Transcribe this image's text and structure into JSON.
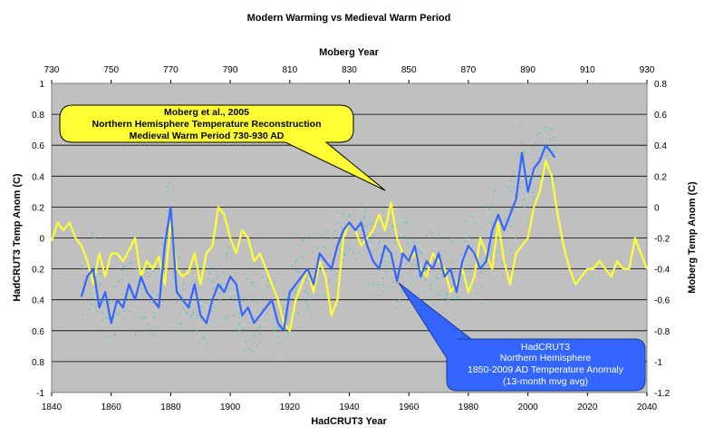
{
  "chart_data": {
    "type": "line",
    "title": "Modern Warming vs Medieval Warm Period",
    "x_bottom_label": "HadCRUT3 Year",
    "x_top_label": "Moberg Year",
    "y_left_label": "HadCRUT3 Temp Anom (C)",
    "y_right_label": "Moberg Temp Anom (C)",
    "x_bottom_ticks": [
      "1840",
      "1860",
      "1880",
      "1900",
      "1920",
      "1940",
      "1960",
      "1980",
      "2000",
      "2020",
      "2040"
    ],
    "x_top_ticks": [
      "730",
      "750",
      "770",
      "790",
      "810",
      "830",
      "850",
      "870",
      "890",
      "910",
      "930"
    ],
    "y_left_ticks": [
      "1",
      "0.8",
      "0.6",
      "0.4",
      "0.2",
      "0",
      "0.2",
      "0.4",
      "0.6",
      "0.8",
      "-1"
    ],
    "y_right_ticks": [
      "0.8",
      "0.6",
      "0.4",
      "0.2",
      "0",
      "-0.2",
      "-0.4",
      "-0.6",
      "-0.8",
      "-1",
      "-1.2"
    ],
    "xlim_bottom": [
      1840,
      2040
    ],
    "xlim_top": [
      730,
      930
    ],
    "ylim_left": [
      -1,
      1
    ],
    "ylim_right": [
      -1.2,
      0.8
    ],
    "grid": true,
    "background": "#c0c0c0",
    "colors": {
      "moberg": "#ffff33",
      "hadcrut": "#3366ff",
      "scatter": "#33cccc"
    },
    "callouts": {
      "moberg": [
        "Moberg et al., 2005",
        "Northern Hemisphere Temperature Reconstruction",
        "Medieval Warm Period 730-930 AD"
      ],
      "hadcrut": [
        "HadCRUT3",
        "Northern Hemisphere",
        "1850-2009 AD Temperature Anomaly",
        "(13-month mvg avg)"
      ]
    },
    "series": [
      {
        "axis": "top-right",
        "x": [
          730,
          732,
          734,
          736,
          738,
          740,
          742,
          744,
          746,
          748,
          750,
          752,
          754,
          756,
          758,
          760,
          762,
          764,
          766,
          768,
          770,
          772,
          774,
          776,
          778,
          780,
          782,
          784,
          786,
          788,
          790,
          792,
          794,
          796,
          798,
          800,
          802,
          804,
          806,
          808,
          810,
          812,
          814,
          816,
          818,
          820,
          822,
          824,
          826,
          828,
          830,
          832,
          834,
          836,
          838,
          840,
          842,
          844,
          846,
          848,
          850,
          852,
          854,
          856,
          858,
          860,
          862,
          864,
          866,
          868,
          870,
          872,
          874,
          876,
          878,
          880,
          882,
          884,
          886,
          888,
          890,
          892,
          894,
          896,
          898,
          900,
          902,
          904,
          906,
          908,
          910,
          912,
          914,
          916,
          918,
          920,
          922,
          924,
          926,
          928,
          930
        ],
        "values": [
          -0.22,
          -0.1,
          -0.15,
          -0.1,
          -0.2,
          -0.25,
          -0.35,
          -0.5,
          -0.3,
          -0.45,
          -0.3,
          -0.3,
          -0.35,
          -0.28,
          -0.2,
          -0.45,
          -0.35,
          -0.4,
          -0.32,
          -0.5,
          -0.1,
          -0.4,
          -0.45,
          -0.42,
          -0.3,
          -0.5,
          -0.3,
          -0.25,
          0.0,
          -0.05,
          -0.2,
          -0.3,
          -0.15,
          -0.2,
          -0.35,
          -0.3,
          -0.4,
          -0.5,
          -0.6,
          -0.75,
          -0.8,
          -0.6,
          -0.5,
          -0.4,
          -0.55,
          -0.35,
          -0.45,
          -0.7,
          -0.6,
          -0.2,
          -0.1,
          -0.15,
          -0.25,
          -0.2,
          -0.15,
          -0.05,
          -0.15,
          0.03,
          -0.2,
          -0.3,
          -0.35,
          -0.3,
          -0.4,
          -0.45,
          -0.3,
          -0.35,
          -0.4,
          -0.55,
          -0.5,
          -0.4,
          -0.55,
          -0.45,
          -0.2,
          -0.3,
          -0.4,
          -0.1,
          -0.35,
          -0.5,
          -0.3,
          -0.25,
          -0.2,
          0.0,
          0.1,
          0.3,
          0.2,
          -0.05,
          -0.25,
          -0.4,
          -0.5,
          -0.45,
          -0.4,
          -0.4,
          -0.35,
          -0.4,
          -0.45,
          -0.35,
          -0.4,
          -0.4,
          -0.2,
          -0.3,
          -0.4
        ]
      },
      {
        "axis": "bottom-left",
        "x": [
          1850,
          1852,
          1854,
          1856,
          1858,
          1860,
          1862,
          1864,
          1866,
          1868,
          1870,
          1872,
          1874,
          1876,
          1878,
          1880,
          1882,
          1884,
          1886,
          1888,
          1890,
          1892,
          1894,
          1896,
          1898,
          1900,
          1902,
          1904,
          1906,
          1908,
          1910,
          1912,
          1914,
          1916,
          1918,
          1920,
          1922,
          1924,
          1926,
          1928,
          1930,
          1932,
          1934,
          1936,
          1938,
          1940,
          1942,
          1944,
          1946,
          1948,
          1950,
          1952,
          1954,
          1956,
          1958,
          1960,
          1962,
          1964,
          1966,
          1968,
          1970,
          1972,
          1974,
          1976,
          1978,
          1980,
          1982,
          1984,
          1986,
          1988,
          1990,
          1992,
          1994,
          1996,
          1998,
          2000,
          2002,
          2004,
          2006,
          2008,
          2009
        ],
        "values": [
          -0.38,
          -0.25,
          -0.2,
          -0.45,
          -0.35,
          -0.55,
          -0.4,
          -0.45,
          -0.3,
          -0.4,
          -0.25,
          -0.35,
          -0.4,
          -0.45,
          -0.05,
          0.2,
          -0.35,
          -0.4,
          -0.45,
          -0.3,
          -0.5,
          -0.55,
          -0.4,
          -0.3,
          -0.35,
          -0.25,
          -0.3,
          -0.5,
          -0.45,
          -0.55,
          -0.5,
          -0.45,
          -0.4,
          -0.55,
          -0.6,
          -0.35,
          -0.3,
          -0.25,
          -0.2,
          -0.3,
          -0.1,
          -0.15,
          -0.2,
          -0.05,
          0.05,
          0.1,
          0.05,
          0.1,
          -0.05,
          -0.15,
          -0.2,
          -0.05,
          -0.1,
          -0.28,
          -0.1,
          -0.15,
          -0.05,
          -0.25,
          -0.15,
          -0.2,
          -0.1,
          -0.25,
          -0.2,
          -0.35,
          -0.15,
          -0.05,
          -0.1,
          -0.2,
          -0.15,
          0.05,
          0.15,
          0.05,
          0.15,
          0.25,
          0.55,
          0.3,
          0.45,
          0.5,
          0.6,
          0.55,
          0.52
        ]
      }
    ]
  }
}
